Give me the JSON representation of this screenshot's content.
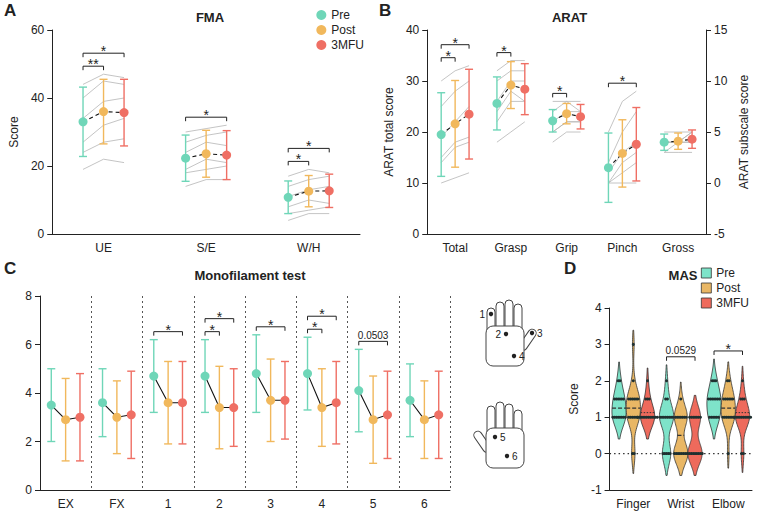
{
  "chart_data": [
    {
      "panel": "A",
      "type": "dot_plot",
      "title": "FMA",
      "y_label": "Score",
      "categories": [
        "UE",
        "S/E",
        "W/H"
      ],
      "ylim": [
        0,
        60
      ],
      "yticks": [
        0,
        20,
        40,
        60
      ],
      "legend": "top-right",
      "line_style": "dashed",
      "series": [
        {
          "name": "Pre",
          "color": "#6fd6b8",
          "values": [
            33,
            22.3,
            10.8
          ],
          "errors": [
            10.2,
            6.8,
            4.8
          ]
        },
        {
          "name": "Post",
          "color": "#f1b85c",
          "values": [
            36,
            23.6,
            12.6
          ],
          "errors": [
            9.5,
            6.9,
            4.6
          ]
        },
        {
          "name": "3MFU",
          "color": "#ef6f64",
          "values": [
            35.7,
            23.2,
            12.7
          ],
          "errors": [
            9.8,
            7.2,
            4.9
          ]
        }
      ],
      "individual": [
        {
          "category": "UE",
          "values": [
            [
              19,
              22,
              21
            ],
            [
              27,
              32,
              34
            ],
            [
              34,
              39,
              40
            ],
            [
              40,
              45,
              44
            ],
            [
              44,
              47,
              46
            ],
            [
              24,
              27,
              28
            ]
          ]
        },
        {
          "category": "S/E",
          "values": [
            [
              14,
              16,
              16
            ],
            [
              19,
              22,
              21
            ],
            [
              24,
              27,
              26
            ],
            [
              27,
              29,
              30
            ],
            [
              30,
              31,
              32
            ],
            [
              18,
              19,
              20
            ]
          ]
        },
        {
          "category": "W/H",
          "values": [
            [
              4,
              6,
              6
            ],
            [
              8,
              10,
              9
            ],
            [
              11,
              13,
              14
            ],
            [
              14,
              16,
              17
            ],
            [
              17,
              19,
              18
            ],
            [
              6,
              7,
              8
            ]
          ]
        }
      ],
      "significance": [
        {
          "category": "UE",
          "from": "Pre",
          "to": "Post",
          "label": "**"
        },
        {
          "category": "UE",
          "from": "Pre",
          "to": "3MFU",
          "label": "*"
        },
        {
          "category": "S/E",
          "from": "Pre",
          "to": "3MFU",
          "label": "*"
        },
        {
          "category": "W/H",
          "from": "Pre",
          "to": "Post",
          "label": "*"
        },
        {
          "category": "W/H",
          "from": "Pre",
          "to": "3MFU",
          "label": "*"
        }
      ]
    },
    {
      "panel": "B",
      "type": "dot_plot",
      "title": "ARAT",
      "y_label": "ARAT total score",
      "y2_label": "ARAT subscale score",
      "categories": [
        "Total",
        "Grasp",
        "Grip",
        "Pinch",
        "Gross"
      ],
      "ylim": [
        0,
        40
      ],
      "yticks": [
        0,
        10,
        20,
        30,
        40
      ],
      "y2lim": [
        -5,
        15
      ],
      "y2ticks": [
        -5,
        0,
        5,
        10,
        15
      ],
      "line_style": "dashed",
      "series": [
        {
          "name": "Pre",
          "color": "#6fd6b8",
          "axis": "y",
          "values": [
            19.5,
            null,
            null,
            null,
            null
          ],
          "errors": [
            8.2,
            null,
            null,
            null,
            null
          ]
        },
        {
          "name": "Pre",
          "color": "#6fd6b8",
          "axis": "y2",
          "values": [
            null,
            7.8,
            6.1,
            1.5,
            4.0
          ],
          "errors": [
            null,
            2.6,
            1.1,
            3.4,
            0.8
          ]
        },
        {
          "name": "Post",
          "color": "#f1b85c",
          "axis": "y",
          "values": [
            21.6,
            null,
            null,
            null,
            null
          ],
          "errors": [
            8.5,
            null,
            null,
            null,
            null
          ]
        },
        {
          "name": "Post",
          "color": "#f1b85c",
          "axis": "y2",
          "values": [
            null,
            9.6,
            6.8,
            2.9,
            4.1
          ],
          "errors": [
            null,
            2.3,
            1.0,
            3.3,
            0.8
          ]
        },
        {
          "name": "3MFU",
          "color": "#ef6f64",
          "axis": "y",
          "values": [
            23.5,
            null,
            null,
            null,
            null
          ],
          "errors": [
            8.8,
            null,
            null,
            null,
            null
          ]
        },
        {
          "name": "3MFU",
          "color": "#ef6f64",
          "axis": "y2",
          "values": [
            null,
            9.2,
            6.5,
            3.8,
            4.3
          ],
          "errors": [
            null,
            2.5,
            1.2,
            3.6,
            0.9
          ]
        }
      ],
      "individual": [
        {
          "category": "Total",
          "axis": "y",
          "values": [
            [
              10,
              11,
              12
            ],
            [
              14,
              17,
              18
            ],
            [
              19,
              22,
              25
            ],
            [
              25,
              28,
              30
            ],
            [
              30,
              32,
              33
            ],
            [
              15,
              18,
              19
            ]
          ]
        },
        {
          "category": "Grasp",
          "axis": "y2",
          "values": [
            [
              4,
              5,
              6
            ],
            [
              6,
              8,
              8
            ],
            [
              8,
              10,
              10
            ],
            [
              10,
              11,
              11
            ],
            [
              11,
              12,
              12
            ],
            [
              7,
              9,
              8
            ]
          ]
        },
        {
          "category": "Grip",
          "axis": "y2",
          "values": [
            [
              4,
              5,
              5
            ],
            [
              5,
              6,
              6
            ],
            [
              6,
              7,
              7
            ],
            [
              7,
              8,
              7
            ],
            [
              8,
              8,
              8
            ],
            [
              5,
              6,
              6
            ]
          ]
        },
        {
          "category": "Pinch",
          "axis": "y2",
          "values": [
            [
              0,
              0,
              0
            ],
            [
              0,
              1,
              2
            ],
            [
              1,
              3,
              4
            ],
            [
              2,
              5,
              7
            ],
            [
              5,
              8,
              9
            ],
            [
              0,
              2,
              3
            ]
          ]
        },
        {
          "category": "Gross",
          "axis": "y2",
          "values": [
            [
              3,
              3,
              3
            ],
            [
              4,
              4,
              4
            ],
            [
              4,
              4,
              5
            ],
            [
              5,
              5,
              5
            ],
            [
              3,
              4,
              4
            ],
            [
              4,
              4,
              5
            ]
          ]
        }
      ],
      "significance": [
        {
          "category": "Total",
          "from": "Pre",
          "to": "Post",
          "label": "*"
        },
        {
          "category": "Total",
          "from": "Pre",
          "to": "3MFU",
          "label": "*"
        },
        {
          "category": "Grasp",
          "from": "Pre",
          "to": "Post",
          "label": "*"
        },
        {
          "category": "Grip",
          "from": "Pre",
          "to": "Post",
          "label": "*"
        },
        {
          "category": "Pinch",
          "from": "Pre",
          "to": "3MFU",
          "label": "*"
        }
      ]
    },
    {
      "panel": "C",
      "type": "dot_plot",
      "title": "Monofilament test",
      "categories": [
        "EX",
        "FX",
        "1",
        "2",
        "3",
        "4",
        "5",
        "6"
      ],
      "ylim": [
        0,
        8
      ],
      "yticks": [
        0,
        2,
        4,
        6,
        8
      ],
      "line_style": "solid",
      "series": [
        {
          "name": "Pre",
          "color": "#6fd6b8",
          "values": [
            3.5,
            3.6,
            4.7,
            4.7,
            4.8,
            4.8,
            4.1,
            3.7
          ],
          "errors": [
            1.5,
            1.4,
            1.5,
            1.5,
            1.6,
            1.5,
            1.7,
            1.5
          ]
        },
        {
          "name": "Post",
          "color": "#f1b85c",
          "values": [
            2.9,
            3.0,
            3.6,
            3.4,
            3.7,
            3.4,
            2.9,
            2.9
          ],
          "errors": [
            1.7,
            1.5,
            1.7,
            1.7,
            1.7,
            1.6,
            1.8,
            1.6
          ]
        },
        {
          "name": "3MFU",
          "color": "#ef6f64",
          "values": [
            3.0,
            3.1,
            3.6,
            3.4,
            3.7,
            3.6,
            3.1,
            3.1
          ],
          "errors": [
            1.8,
            1.8,
            1.7,
            1.6,
            1.6,
            1.7,
            1.8,
            1.8
          ]
        }
      ],
      "significance": [
        {
          "category": "1",
          "from": "Pre",
          "to": "3MFU",
          "label": "*"
        },
        {
          "category": "2",
          "from": "Pre",
          "to": "Post",
          "label": "*"
        },
        {
          "category": "2",
          "from": "Pre",
          "to": "3MFU",
          "label": "*"
        },
        {
          "category": "3",
          "from": "Pre",
          "to": "3MFU",
          "label": "*"
        },
        {
          "category": "4",
          "from": "Pre",
          "to": "Post",
          "label": "*"
        },
        {
          "category": "4",
          "from": "Pre",
          "to": "3MFU",
          "label": "*"
        },
        {
          "category": "5",
          "from": "Pre",
          "to": "3MFU",
          "label": "0.0503"
        }
      ],
      "hand_sites": {
        "palm": [
          "1",
          "2",
          "3",
          "4"
        ],
        "dorsum": [
          "5",
          "6"
        ]
      }
    },
    {
      "panel": "D",
      "type": "violin",
      "title": "MAS",
      "y_label": "Score",
      "categories": [
        "Finger",
        "Wrist",
        "Elbow"
      ],
      "ylim": [
        -1,
        4
      ],
      "yticks": [
        -1,
        0,
        1,
        2,
        3,
        4
      ],
      "legend": "top-right",
      "reference_line": 0,
      "series": [
        {
          "name": "Pre",
          "color": "#7ee3c9",
          "points": [
            [
              1,
              1,
              1,
              1,
              1,
              1,
              1,
              1,
              1.5,
              1.5,
              1.5,
              1.5,
              1.5,
              1.5,
              2,
              2
            ],
            [
              0,
              0,
              0,
              0,
              0,
              1,
              1,
              1,
              1,
              1,
              1,
              1,
              1,
              1.5,
              1.5,
              2
            ],
            [
              1,
              1,
              1,
              1,
              1,
              1.5,
              1.5,
              1.5,
              1.5,
              1.5,
              1.5,
              1.5,
              2,
              2,
              2,
              1
            ]
          ]
        },
        {
          "name": "Post",
          "color": "#e9b765",
          "points": [
            [
              0,
              0,
              1,
              1,
              1,
              1,
              1,
              1.5,
              1.5,
              1.5,
              1.5,
              1.5,
              1.5,
              2,
              1,
              3
            ],
            [
              0,
              0,
              0,
              0,
              0,
              0,
              0,
              1,
              1,
              1,
              1,
              1,
              1,
              1,
              1.5,
              0
            ],
            [
              0,
              1,
              1,
              1,
              1,
              1,
              1.5,
              1.5,
              1.5,
              1.5,
              1.5,
              1.5,
              2,
              2,
              1,
              1
            ]
          ]
        },
        {
          "name": "3MFU",
          "color": "#ee6a5c",
          "points": [
            [
              1,
              1,
              1,
              1,
              1,
              1,
              1,
              1,
              1,
              1.5,
              1.5,
              1.5,
              1,
              2,
              1,
              1
            ],
            [
              0,
              0,
              0,
              0,
              0,
              0,
              0,
              0,
              1,
              1,
              1,
              1,
              1,
              1,
              1,
              0
            ],
            [
              0,
              0,
              1,
              1,
              1,
              1,
              1,
              1,
              1,
              1.5,
              1.5,
              1.5,
              2,
              1,
              1,
              1
            ]
          ]
        }
      ],
      "significance": [
        {
          "category": "Wrist",
          "from": "Pre",
          "to": "3MFU",
          "label": "0.0529"
        },
        {
          "category": "Elbow",
          "from": "Pre",
          "to": "3MFU",
          "label": "*"
        }
      ]
    }
  ]
}
